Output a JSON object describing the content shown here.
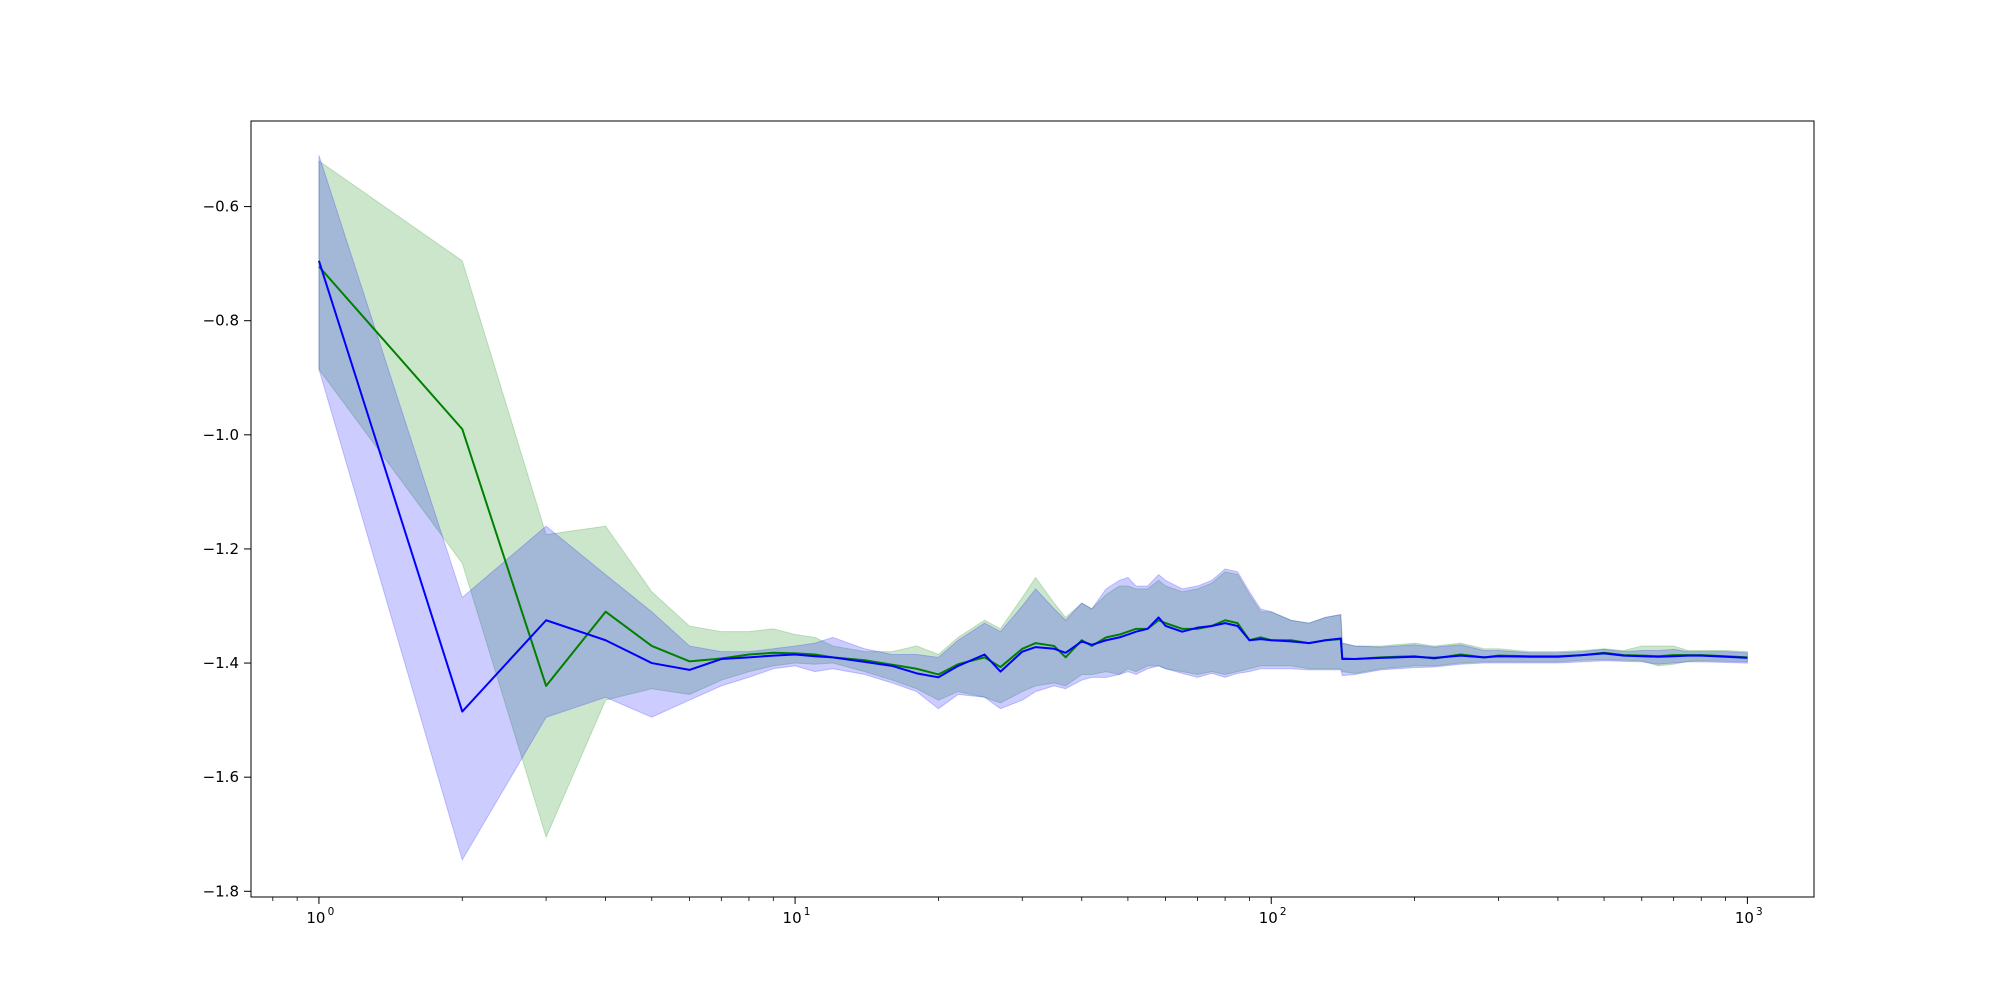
{
  "chart_data": {
    "type": "line",
    "title": "",
    "xlabel": "",
    "ylabel": "",
    "x_scale": "log",
    "xlim": [
      0.72,
      1380
    ],
    "ylim": [
      -1.81,
      -0.45
    ],
    "grid": false,
    "legend": "none",
    "x_ticks": [
      {
        "value": 1,
        "base": "10",
        "exp": "0"
      },
      {
        "value": 10,
        "base": "10",
        "exp": "1"
      },
      {
        "value": 100,
        "base": "10",
        "exp": "2"
      },
      {
        "value": 1000,
        "base": "10",
        "exp": "3"
      }
    ],
    "y_ticks": [
      {
        "value": -0.6,
        "label": "−0.6"
      },
      {
        "value": -0.8,
        "label": "−0.8"
      },
      {
        "value": -1.0,
        "label": "−1.0"
      },
      {
        "value": -1.2,
        "label": "−1.2"
      },
      {
        "value": -1.4,
        "label": "−1.4"
      },
      {
        "value": -1.6,
        "label": "−1.6"
      },
      {
        "value": -1.8,
        "label": "−1.8"
      }
    ],
    "series": [
      {
        "color": "#008000",
        "band_color": "#008000",
        "band_opacity": 0.2,
        "x": [
          1,
          2,
          3,
          4,
          5,
          6,
          7,
          8,
          9,
          10,
          11,
          12,
          14,
          16,
          18,
          20,
          22,
          25,
          27,
          30,
          32,
          35,
          37,
          40,
          42,
          45,
          48,
          50,
          52,
          55,
          58,
          60,
          65,
          70,
          75,
          80,
          85,
          90,
          95,
          100,
          110,
          120,
          130,
          140,
          141,
          150,
          170,
          200,
          220,
          250,
          280,
          300,
          350,
          400,
          450,
          500,
          550,
          600,
          650,
          700,
          750,
          800,
          900,
          1000
        ],
        "y": [
          -0.705,
          -0.99,
          -1.44,
          -1.31,
          -1.37,
          -1.397,
          -1.392,
          -1.385,
          -1.382,
          -1.383,
          -1.385,
          -1.39,
          -1.395,
          -1.403,
          -1.41,
          -1.42,
          -1.402,
          -1.39,
          -1.407,
          -1.375,
          -1.365,
          -1.37,
          -1.39,
          -1.36,
          -1.37,
          -1.355,
          -1.35,
          -1.345,
          -1.34,
          -1.34,
          -1.325,
          -1.33,
          -1.34,
          -1.34,
          -1.335,
          -1.325,
          -1.33,
          -1.36,
          -1.355,
          -1.36,
          -1.36,
          -1.365,
          -1.36,
          -1.358,
          -1.392,
          -1.393,
          -1.39,
          -1.388,
          -1.392,
          -1.385,
          -1.39,
          -1.387,
          -1.388,
          -1.388,
          -1.386,
          -1.382,
          -1.386,
          -1.387,
          -1.388,
          -1.386,
          -1.386,
          -1.386,
          -1.388,
          -1.39
        ],
        "lower": [
          -0.885,
          -1.225,
          -1.705,
          -1.465,
          -1.445,
          -1.455,
          -1.43,
          -1.415,
          -1.405,
          -1.4,
          -1.402,
          -1.4,
          -1.415,
          -1.43,
          -1.445,
          -1.465,
          -1.45,
          -1.46,
          -1.47,
          -1.45,
          -1.44,
          -1.435,
          -1.44,
          -1.42,
          -1.42,
          -1.415,
          -1.42,
          -1.41,
          -1.415,
          -1.405,
          -1.405,
          -1.41,
          -1.415,
          -1.42,
          -1.415,
          -1.42,
          -1.415,
          -1.41,
          -1.405,
          -1.405,
          -1.405,
          -1.41,
          -1.41,
          -1.41,
          -1.415,
          -1.418,
          -1.41,
          -1.405,
          -1.405,
          -1.4,
          -1.398,
          -1.398,
          -1.398,
          -1.398,
          -1.395,
          -1.394,
          -1.395,
          -1.396,
          -1.405,
          -1.402,
          -1.397,
          -1.396,
          -1.397,
          -1.398
        ],
        "upper": [
          -0.52,
          -0.695,
          -1.175,
          -1.16,
          -1.275,
          -1.335,
          -1.345,
          -1.345,
          -1.34,
          -1.35,
          -1.355,
          -1.37,
          -1.38,
          -1.38,
          -1.37,
          -1.385,
          -1.355,
          -1.325,
          -1.34,
          -1.285,
          -1.25,
          -1.295,
          -1.32,
          -1.295,
          -1.305,
          -1.28,
          -1.265,
          -1.265,
          -1.27,
          -1.27,
          -1.255,
          -1.265,
          -1.275,
          -1.27,
          -1.26,
          -1.24,
          -1.245,
          -1.28,
          -1.31,
          -1.31,
          -1.325,
          -1.33,
          -1.32,
          -1.315,
          -1.365,
          -1.37,
          -1.37,
          -1.365,
          -1.37,
          -1.365,
          -1.375,
          -1.375,
          -1.38,
          -1.38,
          -1.378,
          -1.375,
          -1.378,
          -1.37,
          -1.37,
          -1.37,
          -1.378,
          -1.378,
          -1.378,
          -1.38
        ]
      },
      {
        "color": "#0000ff",
        "band_color": "#0000ff",
        "band_opacity": 0.2,
        "x": [
          1,
          2,
          3,
          4,
          5,
          6,
          7,
          8,
          9,
          10,
          11,
          12,
          14,
          16,
          18,
          20,
          22,
          25,
          27,
          30,
          32,
          35,
          37,
          40,
          42,
          45,
          48,
          50,
          52,
          55,
          58,
          60,
          65,
          70,
          75,
          80,
          85,
          90,
          95,
          100,
          110,
          120,
          130,
          140,
          141,
          150,
          170,
          200,
          220,
          250,
          280,
          300,
          350,
          400,
          450,
          500,
          550,
          600,
          650,
          700,
          750,
          800,
          900,
          1000
        ],
        "y": [
          -0.695,
          -1.485,
          -1.325,
          -1.36,
          -1.4,
          -1.412,
          -1.393,
          -1.39,
          -1.387,
          -1.385,
          -1.388,
          -1.39,
          -1.398,
          -1.405,
          -1.418,
          -1.425,
          -1.405,
          -1.385,
          -1.415,
          -1.38,
          -1.372,
          -1.375,
          -1.382,
          -1.362,
          -1.368,
          -1.36,
          -1.355,
          -1.35,
          -1.345,
          -1.34,
          -1.32,
          -1.335,
          -1.345,
          -1.338,
          -1.335,
          -1.33,
          -1.335,
          -1.36,
          -1.358,
          -1.36,
          -1.362,
          -1.365,
          -1.36,
          -1.357,
          -1.393,
          -1.393,
          -1.391,
          -1.389,
          -1.391,
          -1.387,
          -1.39,
          -1.388,
          -1.389,
          -1.389,
          -1.386,
          -1.383,
          -1.387,
          -1.388,
          -1.389,
          -1.388,
          -1.387,
          -1.387,
          -1.389,
          -1.391
        ],
        "lower": [
          -0.885,
          -1.745,
          -1.495,
          -1.46,
          -1.495,
          -1.465,
          -1.44,
          -1.425,
          -1.41,
          -1.405,
          -1.415,
          -1.41,
          -1.42,
          -1.435,
          -1.45,
          -1.48,
          -1.455,
          -1.46,
          -1.48,
          -1.465,
          -1.45,
          -1.44,
          -1.445,
          -1.43,
          -1.425,
          -1.425,
          -1.42,
          -1.415,
          -1.42,
          -1.41,
          -1.405,
          -1.41,
          -1.418,
          -1.425,
          -1.418,
          -1.425,
          -1.418,
          -1.415,
          -1.41,
          -1.41,
          -1.41,
          -1.412,
          -1.412,
          -1.412,
          -1.422,
          -1.42,
          -1.412,
          -1.408,
          -1.407,
          -1.402,
          -1.4,
          -1.4,
          -1.4,
          -1.4,
          -1.398,
          -1.396,
          -1.397,
          -1.398,
          -1.402,
          -1.4,
          -1.398,
          -1.398,
          -1.399,
          -1.4
        ],
        "upper": [
          -0.51,
          -1.285,
          -1.16,
          -1.245,
          -1.31,
          -1.37,
          -1.38,
          -1.38,
          -1.375,
          -1.37,
          -1.365,
          -1.355,
          -1.375,
          -1.385,
          -1.385,
          -1.39,
          -1.36,
          -1.33,
          -1.345,
          -1.3,
          -1.27,
          -1.305,
          -1.325,
          -1.295,
          -1.305,
          -1.27,
          -1.255,
          -1.25,
          -1.265,
          -1.265,
          -1.245,
          -1.255,
          -1.27,
          -1.265,
          -1.255,
          -1.235,
          -1.24,
          -1.275,
          -1.305,
          -1.31,
          -1.325,
          -1.33,
          -1.32,
          -1.315,
          -1.365,
          -1.37,
          -1.372,
          -1.368,
          -1.372,
          -1.368,
          -1.378,
          -1.378,
          -1.382,
          -1.382,
          -1.38,
          -1.376,
          -1.38,
          -1.378,
          -1.378,
          -1.376,
          -1.38,
          -1.38,
          -1.38,
          -1.382
        ]
      }
    ]
  }
}
